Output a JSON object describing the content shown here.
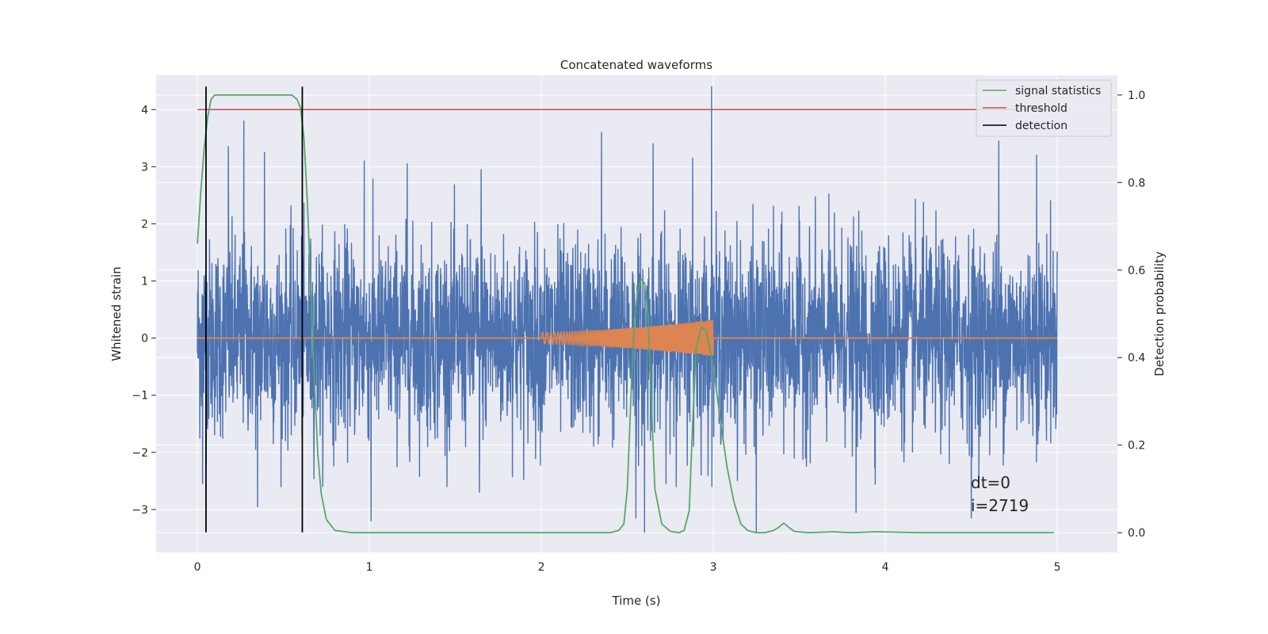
{
  "chart_data": {
    "type": "line",
    "title": "Concatenated waveforms",
    "xlabel": "Time (s)",
    "ylabel": "Whitened strain",
    "y2label": "Detection probability",
    "xlim": [
      -0.24,
      5.35
    ],
    "ylim": [
      -3.75,
      4.6
    ],
    "y2lim": [
      -0.045,
      1.045
    ],
    "x_ticks": [
      0,
      1,
      2,
      3,
      4,
      5
    ],
    "y_ticks": [
      -3,
      -2,
      -1,
      0,
      1,
      2,
      3,
      4
    ],
    "y2_ticks": [
      0.0,
      0.2,
      0.4,
      0.6,
      0.8,
      1.0
    ],
    "grid": true,
    "legend_position": "top-right",
    "colors": {
      "strain": "#4c72b0",
      "template": "#dd8452",
      "signal_statistics": "#55a868",
      "threshold": "#c44e52",
      "detection": "#000000",
      "background": "#eaeaf2",
      "grid": "#ffffff"
    },
    "series": [
      {
        "name": "signal statistics",
        "axis": "right",
        "x": [
          0.0,
          0.02,
          0.04,
          0.06,
          0.08,
          0.1,
          0.15,
          0.3,
          0.5,
          0.55,
          0.58,
          0.6,
          0.62,
          0.64,
          0.66,
          0.68,
          0.7,
          0.72,
          0.75,
          0.8,
          0.9,
          1.5,
          2.0,
          2.4,
          2.45,
          2.48,
          2.5,
          2.52,
          2.54,
          2.56,
          2.58,
          2.6,
          2.62,
          2.64,
          2.66,
          2.7,
          2.75,
          2.8,
          2.83,
          2.86,
          2.88,
          2.9,
          2.93,
          2.96,
          3.0,
          3.04,
          3.08,
          3.12,
          3.16,
          3.2,
          3.25,
          3.3,
          3.35,
          3.38,
          3.41,
          3.44,
          3.47,
          3.55,
          3.7,
          3.8,
          3.95,
          4.2,
          4.6,
          4.98
        ],
        "values": [
          0.66,
          0.78,
          0.88,
          0.95,
          0.99,
          1.0,
          1.0,
          1.0,
          1.0,
          1.0,
          0.99,
          0.97,
          0.9,
          0.75,
          0.55,
          0.35,
          0.18,
          0.09,
          0.03,
          0.005,
          0.0,
          0.0,
          0.0,
          0.0,
          0.005,
          0.02,
          0.1,
          0.3,
          0.48,
          0.55,
          0.58,
          0.57,
          0.5,
          0.3,
          0.1,
          0.02,
          0.003,
          0.0,
          0.005,
          0.05,
          0.25,
          0.42,
          0.47,
          0.46,
          0.38,
          0.26,
          0.15,
          0.07,
          0.02,
          0.005,
          0.0,
          0.0,
          0.005,
          0.012,
          0.022,
          0.012,
          0.003,
          0.0,
          0.002,
          0.0,
          0.002,
          0.0,
          0.0,
          0.0
        ]
      },
      {
        "name": "threshold",
        "axis": "left",
        "x": [
          0.0,
          5.0
        ],
        "values": [
          4.0,
          4.0
        ]
      },
      {
        "name": "detection",
        "axis": "left",
        "type": "vlines",
        "x": [
          0.05,
          0.61
        ],
        "range": [
          -3.4,
          4.4
        ]
      },
      {
        "axis": "left",
        "type": "noise",
        "x_range": [
          0.0,
          5.0
        ],
        "spikes": [
          {
            "x": 0.27,
            "value": 3.8
          },
          {
            "x": 0.18,
            "value": 3.35
          },
          {
            "x": 0.39,
            "value": 3.25
          },
          {
            "x": 0.97,
            "value": 3.1
          },
          {
            "x": 1.22,
            "value": 3.05
          },
          {
            "x": 2.35,
            "value": 3.6
          },
          {
            "x": 2.65,
            "value": 3.4
          },
          {
            "x": 2.88,
            "value": 3.15
          },
          {
            "x": 2.99,
            "value": 4.4
          },
          {
            "x": 4.66,
            "value": 3.45
          },
          {
            "x": 4.88,
            "value": 3.2
          },
          {
            "x": 1.65,
            "value": 2.95
          },
          {
            "x": 0.03,
            "value": -2.55
          },
          {
            "x": 0.35,
            "value": -2.95
          },
          {
            "x": 1.01,
            "value": -3.2
          },
          {
            "x": 2.55,
            "value": -3.15
          },
          {
            "x": 2.6,
            "value": -3.4
          },
          {
            "x": 3.25,
            "value": -3.4
          },
          {
            "x": 3.83,
            "value": -3.05
          },
          {
            "x": 4.5,
            "value": -3.15
          },
          {
            "x": 1.64,
            "value": -2.7
          }
        ]
      },
      {
        "axis": "left",
        "type": "chirp",
        "x_range": [
          2.0,
          3.0
        ],
        "amplitude_range": [
          0.1,
          0.32
        ],
        "baseline": [
          0.0,
          5.0
        ]
      }
    ],
    "annotations": [
      "dt=0",
      "i=2719"
    ]
  }
}
